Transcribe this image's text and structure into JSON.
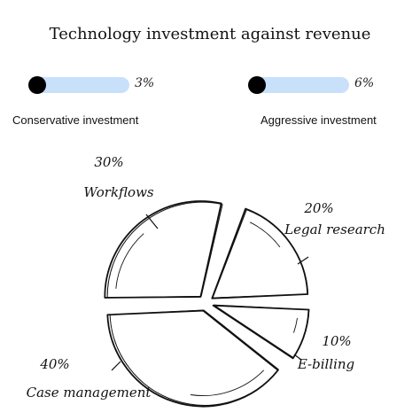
{
  "title": "Technology investment against revenue",
  "sliders": [
    {
      "label": "Conservative investment",
      "value_label": "3%",
      "value": 3
    },
    {
      "label": "Aggressive investment",
      "value_label": "6%",
      "value": 6
    }
  ],
  "colors": {
    "slider_track": "#c9e0fb",
    "knob": "#000000",
    "ink": "#111111"
  },
  "chart_data": {
    "type": "pie",
    "style": "hand-drawn sketch, exploded slices",
    "slices": [
      {
        "name": "Workflows",
        "value": 30,
        "value_label": "30%"
      },
      {
        "name": "Legal research",
        "value": 20,
        "value_label": "20%"
      },
      {
        "name": "E-billing",
        "value": 10,
        "value_label": "10%"
      },
      {
        "name": "Case management",
        "value": 40,
        "value_label": "40%"
      }
    ]
  }
}
